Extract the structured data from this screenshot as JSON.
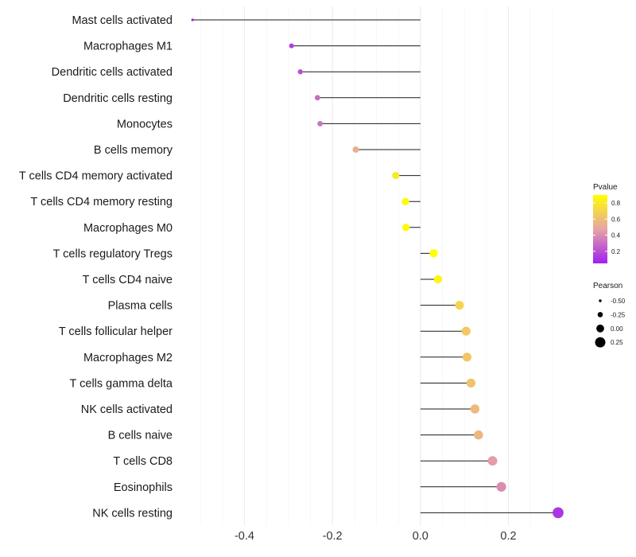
{
  "chart_data": {
    "type": "lollipop",
    "title": "",
    "xlabel": "",
    "ylabel": "",
    "xlim": [
      -0.54,
      0.36
    ],
    "x_ticks": [
      -0.4,
      -0.2,
      0.0,
      0.2
    ],
    "x_tick_labels": [
      "-0.4",
      "-0.2",
      "0.0",
      "0.2"
    ],
    "grid": true,
    "points": [
      {
        "cell": "Mast cells activated",
        "pearson": -0.518,
        "pvalue": 0.02
      },
      {
        "cell": "Macrophages M1",
        "pearson": -0.293,
        "pvalue": 0.15
      },
      {
        "cell": "Dendritic cells activated",
        "pearson": -0.273,
        "pvalue": 0.2
      },
      {
        "cell": "Dendritic cells resting",
        "pearson": -0.234,
        "pvalue": 0.3
      },
      {
        "cell": "Monocytes",
        "pearson": -0.228,
        "pvalue": 0.32
      },
      {
        "cell": "B cells memory",
        "pearson": -0.147,
        "pvalue": 0.52
      },
      {
        "cell": "T cells CD4 memory activated",
        "pearson": -0.056,
        "pvalue": 0.8
      },
      {
        "cell": "T cells CD4 memory resting",
        "pearson": -0.034,
        "pvalue": 0.88
      },
      {
        "cell": "Macrophages M0",
        "pearson": -0.033,
        "pvalue": 0.88
      },
      {
        "cell": "T cells regulatory  Tregs ",
        "pearson": 0.03,
        "pvalue": 0.9
      },
      {
        "cell": "T cells CD4 naive",
        "pearson": 0.04,
        "pvalue": 0.86
      },
      {
        "cell": "Plasma cells",
        "pearson": 0.089,
        "pvalue": 0.7
      },
      {
        "cell": "T cells follicular helper",
        "pearson": 0.104,
        "pvalue": 0.65
      },
      {
        "cell": "Macrophages M2",
        "pearson": 0.106,
        "pvalue": 0.64
      },
      {
        "cell": "T cells gamma delta",
        "pearson": 0.115,
        "pvalue": 0.62
      },
      {
        "cell": "NK cells activated",
        "pearson": 0.124,
        "pvalue": 0.58
      },
      {
        "cell": "B cells naive",
        "pearson": 0.132,
        "pvalue": 0.56
      },
      {
        "cell": "T cells CD8",
        "pearson": 0.164,
        "pvalue": 0.45
      },
      {
        "cell": "Eosinophils",
        "pearson": 0.184,
        "pvalue": 0.4
      },
      {
        "cell": "NK cells resting",
        "pearson": 0.313,
        "pvalue": 0.12
      }
    ],
    "legend_pvalue": {
      "title": "Pvalue",
      "range": [
        0.05,
        0.9
      ],
      "ticks": [
        0.8,
        0.6,
        0.4,
        0.2
      ],
      "tick_labels": [
        "0.8",
        "0.6",
        "0.4",
        "0.2"
      ],
      "color_low": "#a020f0",
      "color_mid": "#e7a4a4",
      "color_high": "#ffff00"
    },
    "legend_pearson": {
      "title": "Pearson",
      "values": [
        -0.5,
        -0.25,
        0.0,
        0.25
      ],
      "labels": [
        "-0.50",
        "-0.25",
        "0.00",
        "0.25"
      ]
    }
  }
}
